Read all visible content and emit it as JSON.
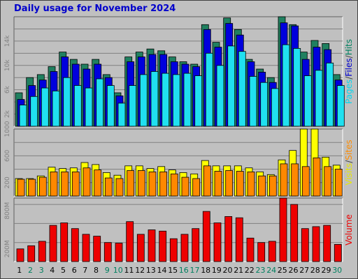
{
  "chart_data": [
    {
      "type": "bar",
      "title": "Daily usage for November 2024",
      "ylabel_parts": [
        {
          "text": "Pages",
          "color": "#00d8f0"
        },
        {
          "text": "/",
          "color": "#404040"
        },
        {
          "text": "Files",
          "color": "#0000cc"
        },
        {
          "text": "/",
          "color": "#404040"
        },
        {
          "text": "Hits",
          "color": "#008060"
        }
      ],
      "categories": [
        "1",
        "2",
        "3",
        "4",
        "5",
        "6",
        "7",
        "8",
        "9",
        "10",
        "11",
        "12",
        "13",
        "14",
        "15",
        "16",
        "17",
        "18",
        "19",
        "20",
        "21",
        "22",
        "23",
        "24",
        "25",
        "26",
        "27",
        "28",
        "29",
        "30"
      ],
      "weekend_days": [
        "2",
        "3",
        "9",
        "10",
        "16",
        "17",
        "23",
        "24",
        "30"
      ],
      "ylim": [
        0,
        18000
      ],
      "yticks": [
        2000,
        6000,
        10000,
        14000
      ],
      "ytick_labels": [
        "2k",
        "6k",
        "10k",
        "14k"
      ],
      "series": [
        {
          "name": "Hits",
          "color": "#208060",
          "values": [
            5500,
            8000,
            8500,
            9800,
            12200,
            11000,
            10200,
            11000,
            8500,
            5500,
            11400,
            12200,
            12700,
            12400,
            11400,
            10600,
            10200,
            16700,
            13800,
            17800,
            15900,
            11000,
            9400,
            8000,
            18000,
            16700,
            12200,
            14100,
            13600,
            8500
          ]
        },
        {
          "name": "Files",
          "color": "#0000dd",
          "values": [
            4400,
            6700,
            7600,
            9000,
            11400,
            10200,
            9400,
            10200,
            8000,
            5000,
            10600,
            11400,
            11800,
            11800,
            10600,
            10200,
            9800,
            15900,
            13000,
            16900,
            15000,
            10600,
            8900,
            7200,
            17000,
            16500,
            11000,
            13000,
            12600,
            7600
          ]
        },
        {
          "name": "Pages",
          "color": "#20e0f0",
          "values": [
            3500,
            4900,
            6300,
            5800,
            8000,
            6700,
            6300,
            7800,
            6700,
            3800,
            6700,
            8500,
            9000,
            8700,
            8500,
            8700,
            8300,
            12000,
            10000,
            13200,
            12300,
            8200,
            7200,
            6200,
            13400,
            12800,
            8300,
            9200,
            10400,
            6700
          ]
        }
      ]
    },
    {
      "type": "bar",
      "ylabel_parts": [
        {
          "text": "Visits",
          "color": "#e8e800"
        },
        {
          "text": "/",
          "color": "#404040"
        },
        {
          "text": "Sites",
          "color": "#ff8c00"
        }
      ],
      "categories": [
        "1",
        "2",
        "3",
        "4",
        "5",
        "6",
        "7",
        "8",
        "9",
        "10",
        "11",
        "12",
        "13",
        "14",
        "15",
        "16",
        "17",
        "18",
        "19",
        "20",
        "21",
        "22",
        "23",
        "24",
        "25",
        "26",
        "27",
        "28",
        "29",
        "30"
      ],
      "ylim": [
        0,
        1000
      ],
      "yticks": [
        200,
        600,
        1000
      ],
      "ytick_labels": [
        "200",
        "600",
        "1000"
      ],
      "series": [
        {
          "name": "Visits",
          "color": "#ffff00",
          "values": [
            260,
            260,
            300,
            430,
            410,
            420,
            500,
            470,
            350,
            310,
            450,
            450,
            410,
            440,
            390,
            350,
            330,
            530,
            450,
            450,
            450,
            420,
            360,
            320,
            540,
            680,
            1000,
            1000,
            580,
            460
          ]
        },
        {
          "name": "Sites",
          "color": "#ff8800",
          "values": [
            250,
            250,
            280,
            360,
            360,
            360,
            420,
            390,
            270,
            260,
            380,
            380,
            360,
            360,
            330,
            280,
            260,
            450,
            370,
            380,
            370,
            360,
            300,
            300,
            480,
            480,
            440,
            570,
            440,
            400
          ]
        }
      ]
    },
    {
      "type": "bar",
      "ylabel_parts": [
        {
          "text": "Volume",
          "color": "#ee0000"
        }
      ],
      "categories": [
        "1",
        "2",
        "3",
        "4",
        "5",
        "6",
        "7",
        "8",
        "9",
        "10",
        "11",
        "12",
        "13",
        "14",
        "15",
        "16",
        "17",
        "18",
        "19",
        "20",
        "21",
        "22",
        "23",
        "24",
        "25",
        "26",
        "27",
        "28",
        "29",
        "30"
      ],
      "ylim": [
        0,
        1000
      ],
      "yticks": [
        200,
        800
      ],
      "ytick_labels": [
        "200M",
        "800M"
      ],
      "series": [
        {
          "name": "Volume",
          "color": "#ee0000",
          "values": [
            200,
            250,
            320,
            570,
            610,
            520,
            430,
            400,
            300,
            290,
            630,
            430,
            500,
            480,
            360,
            430,
            520,
            790,
            610,
            710,
            690,
            370,
            300,
            320,
            1000,
            900,
            520,
            550,
            570,
            270
          ]
        }
      ]
    }
  ]
}
